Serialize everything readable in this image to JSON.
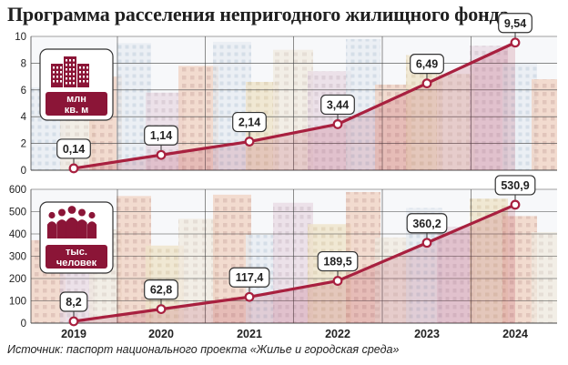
{
  "title": "Программа расселения непригодного жилищного фонда",
  "source": "Источник: паспорт национального проекта «Жилье и городская среда»",
  "colors": {
    "line": "#a8203f",
    "accent": "#8b1537",
    "marker_fill": "#ffffff",
    "grid": "#444444",
    "badge_bg": "#ffffff",
    "badge_border": "#333333"
  },
  "chart_data": [
    {
      "type": "line",
      "categories": [
        "2019",
        "2020",
        "2021",
        "2022",
        "2023",
        "2024"
      ],
      "values": [
        0.14,
        1.14,
        2.14,
        3.44,
        6.49,
        9.54
      ],
      "value_labels": [
        "0,14",
        "1,14",
        "2,14",
        "3,44",
        "6,49",
        "9,54"
      ],
      "unit": [
        "млн",
        "кв. м"
      ],
      "icon": "building-icon",
      "ylim": [
        0,
        10
      ],
      "yticks": [
        "0",
        "2",
        "4",
        "6",
        "8",
        "10"
      ],
      "ytick_values": [
        0,
        2,
        4,
        6,
        8,
        10
      ],
      "grid": true
    },
    {
      "type": "line",
      "categories": [
        "2019",
        "2020",
        "2021",
        "2022",
        "2023",
        "2024"
      ],
      "values": [
        8.2,
        62.8,
        117.4,
        189.5,
        360.2,
        530.9
      ],
      "value_labels": [
        "8,2",
        "62,8",
        "117,4",
        "189,5",
        "360,2",
        "530,9"
      ],
      "unit": [
        "тыс.",
        "человек"
      ],
      "icon": "people-icon",
      "ylim": [
        0,
        600
      ],
      "yticks": [
        "0",
        "100",
        "200",
        "300",
        "400",
        "500",
        "600"
      ],
      "ytick_values": [
        0,
        100,
        200,
        300,
        400,
        500,
        600
      ],
      "grid": true
    }
  ]
}
